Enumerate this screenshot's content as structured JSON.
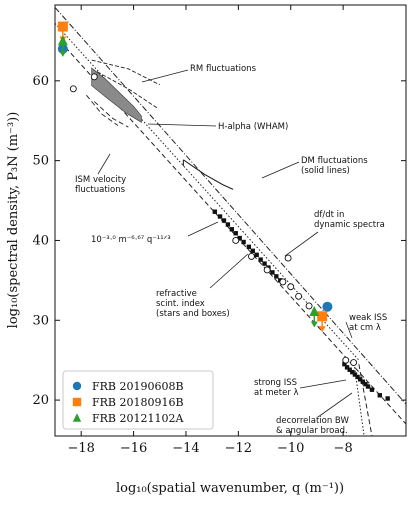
{
  "chart_data": {
    "type": "scatter",
    "xlabel": "log₁₀(spatial wavenumber, q (m⁻¹))",
    "ylabel": "log₁₀(spectral density, P₃N (m⁻³))",
    "xlim": [
      -19.0,
      -5.6
    ],
    "ylim": [
      15.5,
      69.5
    ],
    "xticks": [
      -18,
      -16,
      -14,
      -12,
      -10,
      -8
    ],
    "xtick_labels": [
      "−18",
      "−16",
      "−14",
      "−12",
      "−10",
      "−8"
    ],
    "yticks": [
      20,
      30,
      40,
      50,
      60
    ],
    "ytick_labels": [
      "20",
      "30",
      "40",
      "50",
      "60"
    ],
    "legend": {
      "placement": "bottom-left",
      "entries": [
        {
          "name": "FRB 20190608B",
          "color": "#1f77b4",
          "marker": "circle"
        },
        {
          "name": "FRB 20180916B",
          "color": "#ff7f0e",
          "marker": "square"
        },
        {
          "name": "FRB 20121102A",
          "color": "#2ca02c",
          "marker": "triangle"
        }
      ]
    },
    "series": [
      {
        "name": "FRB 20190608B",
        "color": "#1f77b4",
        "marker": "circle",
        "points": [
          {
            "x": -18.7,
            "y": 64.0
          },
          {
            "x": -8.6,
            "y": 31.7
          }
        ]
      },
      {
        "name": "FRB 20180916B",
        "color": "#ff7f0e",
        "marker": "square",
        "points": [
          {
            "x": -18.7,
            "y": 66.8,
            "err": "down"
          },
          {
            "x": -8.8,
            "y": 30.5,
            "err": "down"
          }
        ]
      },
      {
        "name": "FRB 20121102A",
        "color": "#2ca02c",
        "marker": "triangle",
        "points": [
          {
            "x": -18.7,
            "y": 65.0,
            "err": "down"
          },
          {
            "x": -9.1,
            "y": 31.1,
            "err": "down"
          }
        ]
      }
    ],
    "measurements": {
      "filled": [
        {
          "x": -12.9,
          "y": 43.6
        },
        {
          "x": -12.7,
          "y": 43.0
        },
        {
          "x": -12.55,
          "y": 42.5
        },
        {
          "x": -12.4,
          "y": 42.0
        },
        {
          "x": -12.25,
          "y": 41.4
        },
        {
          "x": -12.1,
          "y": 40.9
        },
        {
          "x": -11.95,
          "y": 40.3
        },
        {
          "x": -11.8,
          "y": 39.8
        },
        {
          "x": -11.6,
          "y": 39.2
        },
        {
          "x": -11.45,
          "y": 38.7
        },
        {
          "x": -11.3,
          "y": 38.2
        },
        {
          "x": -11.15,
          "y": 37.6
        },
        {
          "x": -11.0,
          "y": 37.1
        },
        {
          "x": -10.85,
          "y": 36.6
        },
        {
          "x": -10.7,
          "y": 36.0
        },
        {
          "x": -10.55,
          "y": 35.5
        },
        {
          "x": -10.4,
          "y": 35.0
        },
        {
          "x": -7.95,
          "y": 24.5
        },
        {
          "x": -7.85,
          "y": 24.1
        },
        {
          "x": -7.75,
          "y": 23.8
        },
        {
          "x": -7.65,
          "y": 23.5
        },
        {
          "x": -7.55,
          "y": 23.2
        },
        {
          "x": -7.45,
          "y": 22.9
        },
        {
          "x": -7.35,
          "y": 22.6
        },
        {
          "x": -7.25,
          "y": 22.3
        },
        {
          "x": -7.15,
          "y": 22.0
        },
        {
          "x": -7.05,
          "y": 21.7
        },
        {
          "x": -6.9,
          "y": 21.3
        },
        {
          "x": -6.6,
          "y": 20.6
        },
        {
          "x": -6.3,
          "y": 20.2
        }
      ],
      "open": [
        {
          "x": -17.5,
          "y": 60.5
        },
        {
          "x": -18.3,
          "y": 59.0
        },
        {
          "x": -12.1,
          "y": 40.0
        },
        {
          "x": -11.5,
          "y": 38.0
        },
        {
          "x": -10.9,
          "y": 36.3
        },
        {
          "x": -10.3,
          "y": 34.8
        },
        {
          "x": -10.0,
          "y": 34.2
        },
        {
          "x": -9.7,
          "y": 33.0
        },
        {
          "x": -9.3,
          "y": 31.8
        },
        {
          "x": -10.1,
          "y": 37.8
        },
        {
          "x": -7.9,
          "y": 25.0
        },
        {
          "x": -7.6,
          "y": 24.7
        }
      ]
    },
    "annotations": [
      {
        "text": [
          "RM fluctuations"
        ]
      },
      {
        "text": [
          "H-alpha (WHAM)"
        ]
      },
      {
        "text": [
          "ISM velocity",
          "fluctuations"
        ]
      },
      {
        "text": [
          "DM fluctuations",
          "(solid lines)"
        ]
      },
      {
        "text": [
          "df/dt in",
          "dynamic spectra"
        ]
      },
      {
        "text": [
          "10⁻³·⁰ m⁻⁶·⁶⁷ q⁻¹¹ᐟ³"
        ]
      },
      {
        "text": [
          "refractive",
          "scint. index",
          "(stars and boxes)"
        ]
      },
      {
        "text": [
          "weak ISS",
          "at cm λ"
        ]
      },
      {
        "text": [
          "strong ISS",
          "at meter λ"
        ]
      },
      {
        "text": [
          "decorrelation BW",
          "& angular broad."
        ]
      }
    ]
  }
}
